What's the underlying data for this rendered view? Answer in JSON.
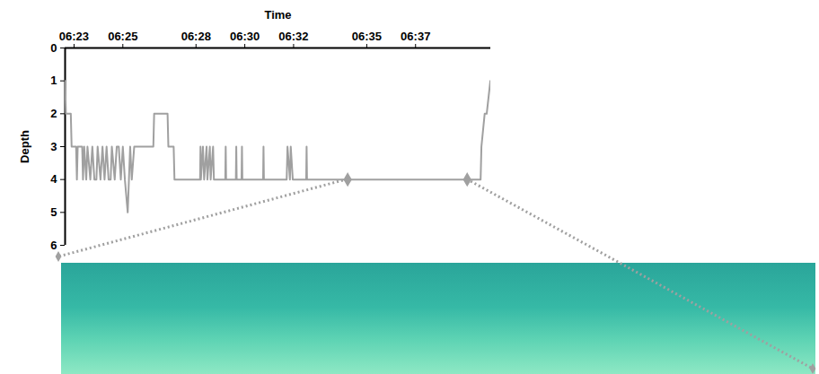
{
  "chart_data": {
    "type": "line",
    "x_label": "Time",
    "y_label": "Depth",
    "color": "#a0a0a0",
    "x": [
      "06:22:38",
      "06:22:40",
      "06:22:52",
      "06:22:54",
      "06:23:05",
      "06:23:07",
      "06:23:09",
      "06:23:20",
      "06:23:22",
      "06:23:25",
      "06:23:30",
      "06:23:33",
      "06:23:40",
      "06:23:45",
      "06:23:50",
      "06:23:55",
      "06:23:58",
      "06:24:05",
      "06:24:10",
      "06:24:15",
      "06:24:20",
      "06:24:25",
      "06:24:30",
      "06:24:33",
      "06:24:40",
      "06:24:45",
      "06:24:50",
      "06:24:55",
      "06:25:00",
      "06:25:05",
      "06:25:12",
      "06:25:15",
      "06:25:18",
      "06:25:22",
      "06:25:28",
      "06:26:15",
      "06:26:17",
      "06:26:50",
      "06:26:52",
      "06:27:05",
      "06:27:07",
      "06:28:10",
      "06:28:11",
      "06:28:12",
      "06:28:17",
      "06:28:20",
      "06:28:26",
      "06:28:28",
      "06:28:34",
      "06:28:36",
      "06:28:42",
      "06:28:44",
      "06:29:12",
      "06:29:13",
      "06:29:14",
      "06:29:38",
      "06:29:39",
      "06:29:40",
      "06:29:52",
      "06:29:53",
      "06:29:54",
      "06:30:45",
      "06:30:46",
      "06:30:47",
      "06:31:43",
      "06:31:45",
      "06:31:51",
      "06:31:53",
      "06:31:58",
      "06:32:00",
      "06:32:31",
      "06:32:32",
      "06:32:33",
      "06:39:40",
      "06:39:42",
      "06:39:50",
      "06:39:55",
      "06:40:04"
    ],
    "values": [
      1,
      2,
      2,
      3,
      3,
      4,
      3,
      3,
      4,
      3,
      4,
      3,
      4,
      3,
      4,
      4,
      3,
      4,
      3,
      4,
      3,
      4,
      4,
      3,
      4,
      3,
      3,
      4,
      3,
      4,
      5,
      4,
      3,
      4,
      3,
      3,
      2,
      2,
      3,
      3,
      4,
      4,
      3,
      4,
      3,
      4,
      3,
      4,
      3,
      4,
      3,
      4,
      4,
      3,
      4,
      4,
      3,
      4,
      4,
      3,
      4,
      4,
      3,
      4,
      4,
      3,
      4,
      3,
      4,
      4,
      4,
      3,
      4,
      4,
      3,
      2,
      2,
      1
    ],
    "xlim": [
      "06:22:38",
      "06:40:05"
    ],
    "ylim": [
      0,
      6
    ],
    "xticks": [
      "06:23",
      "06:25",
      "06:28",
      "06:30",
      "06:32",
      "06:35",
      "06:37"
    ],
    "yticks": [
      0,
      1,
      2,
      3,
      4,
      5,
      6
    ],
    "highlight_points": [
      {
        "x": "06:34:13",
        "y": 4
      },
      {
        "x": "06:39:07",
        "y": 4
      }
    ]
  }
}
